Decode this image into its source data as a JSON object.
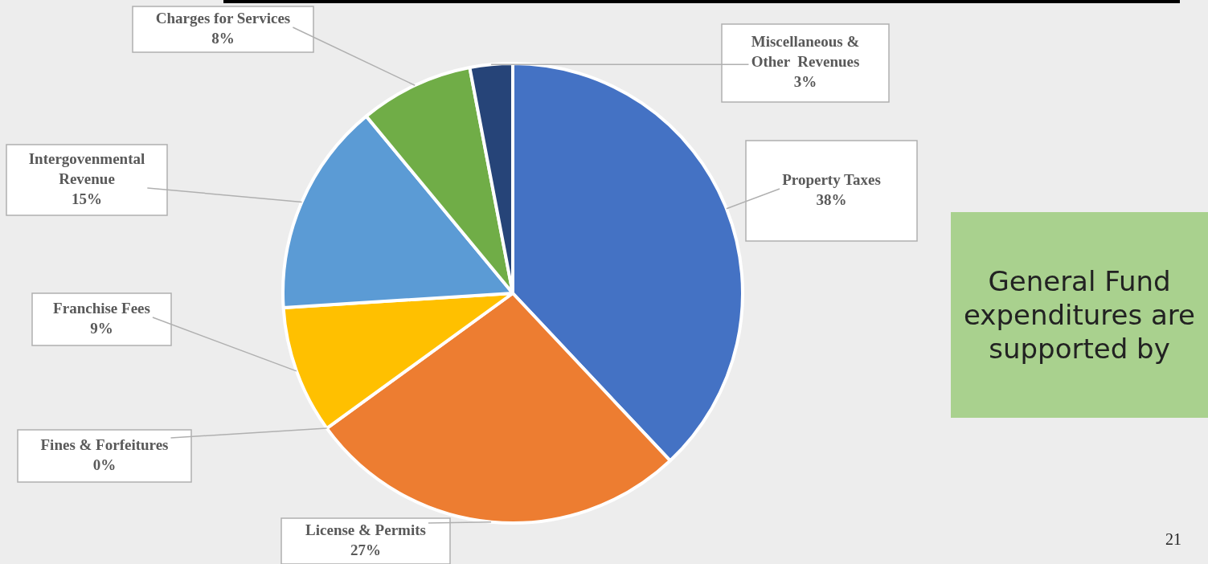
{
  "chart_data": {
    "type": "pie",
    "categories": [
      "Property Taxes",
      "License & Permits",
      "Fines & Forfeitures",
      "Franchise Fees",
      "Intergovenmental Revenue",
      "Charges for Services",
      "Miscellaneous & Other  Revenues"
    ],
    "values": [
      38,
      27,
      0,
      9,
      15,
      8,
      3
    ],
    "value_labels": [
      "38%",
      "27%",
      "0%",
      "9%",
      "15%",
      "8%",
      "3%"
    ],
    "colors": [
      "#4472c4",
      "#ed7d31",
      "#a5a5a5",
      "#ffc000",
      "#5b9bd5",
      "#70ad47",
      "#264478"
    ],
    "legend": false,
    "annotations": [
      "General Fund expenditures are supported by",
      "21"
    ]
  }
}
